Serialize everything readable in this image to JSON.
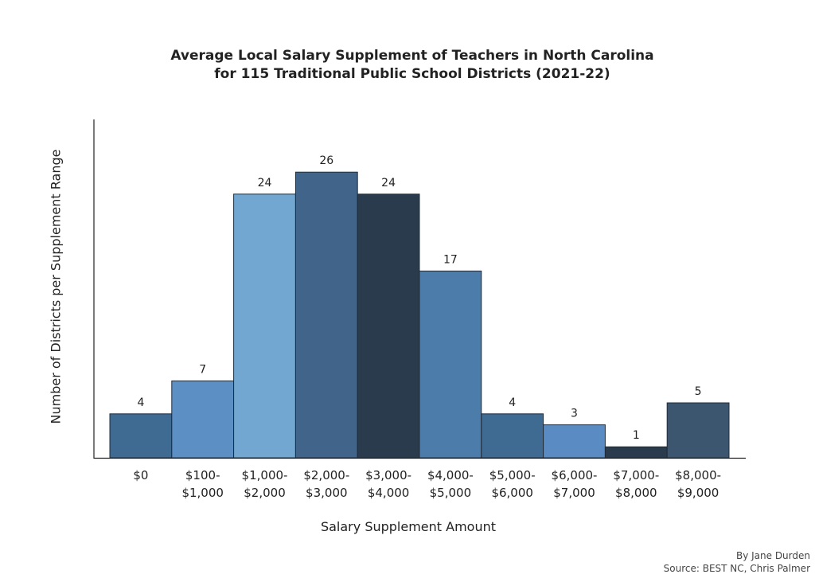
{
  "chart_data": {
    "type": "bar",
    "title": "Average Local Salary Supplement of Teachers in North Carolina",
    "subtitle": "for 115 Traditional Public School Districts (2021-22)",
    "xlabel": "Salary Supplement Amount",
    "ylabel": "Number of Districts per Supplement Range",
    "categories": [
      [
        "$0"
      ],
      [
        "$100-",
        "$1,000"
      ],
      [
        "$1,000-",
        "$2,000"
      ],
      [
        "$2,000-",
        "$3,000"
      ],
      [
        "$3,000-",
        "$4,000"
      ],
      [
        "$4,000-",
        "$5,000"
      ],
      [
        "$5,000-",
        "$6,000"
      ],
      [
        "$6,000-",
        "$7,000"
      ],
      [
        "$7,000-",
        "$8,000"
      ],
      [
        "$8,000-",
        "$9,000"
      ]
    ],
    "values": [
      4,
      7,
      24,
      26,
      24,
      17,
      4,
      3,
      1,
      5
    ],
    "colors": [
      "#3f6a92",
      "#5c8fc4",
      "#71a7d1",
      "#41648a",
      "#2b3b4e",
      "#4c7ca9",
      "#3f6a92",
      "#5a8cc3",
      "#2b3b4e",
      "#3d566f"
    ],
    "ylim": [
      0,
      30
    ],
    "grid": false,
    "legend": "none"
  },
  "credits": {
    "author": "By Jane Durden",
    "source": "Source: BEST NC, Chris Palmer"
  }
}
